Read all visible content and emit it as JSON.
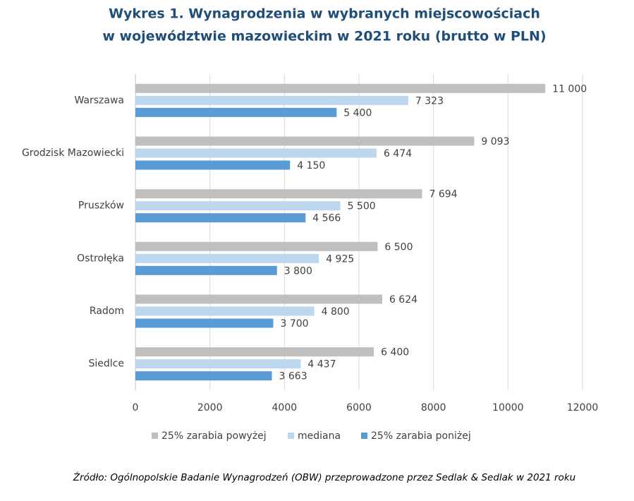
{
  "chart_data": {
    "type": "bar",
    "orientation": "horizontal",
    "title": [
      "Wykres 1. Wynagrodzenia w wybranych miejscowościach",
      "w województwie mazowieckim w 2021 roku (brutto w PLN)"
    ],
    "categories": [
      "Warszawa",
      "Grodzisk Mazowiecki",
      "Pruszków",
      "Ostrołęka",
      "Radom",
      "Siedlce"
    ],
    "series": [
      {
        "name": "25% zarabia powyżej",
        "color": "#bfbfbf",
        "values": [
          11000,
          9093,
          7694,
          6500,
          6624,
          6400
        ],
        "value_labels": [
          "11 000",
          "9 093",
          "7 694",
          "6 500",
          "6 624",
          "6 400"
        ]
      },
      {
        "name": "mediana",
        "color": "#bdd7ee",
        "values": [
          7323,
          6474,
          5500,
          4925,
          4800,
          4437
        ],
        "value_labels": [
          "7 323",
          "6 474",
          "5 500",
          "4 925",
          "4 800",
          "4 437"
        ]
      },
      {
        "name": "25% zarabia poniżej",
        "color": "#5b9bd5",
        "values": [
          5400,
          4150,
          4566,
          3800,
          3700,
          3663
        ],
        "value_labels": [
          "5 400",
          "4 150",
          "4 566",
          "3 800",
          "3 700",
          "3 663"
        ]
      }
    ],
    "xlim": [
      0,
      12000
    ],
    "xticks": [
      0,
      2000,
      4000,
      6000,
      8000,
      10000,
      12000
    ],
    "grid": true,
    "legend": "bottom",
    "source": "Źródło: Ogólnopolskie Badanie Wynagrodzeń (OBW) przeprowadzone przez Sedlak & Sedlak w 2021 roku"
  }
}
